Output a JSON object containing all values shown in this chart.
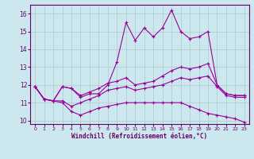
{
  "xlabel": "Windchill (Refroidissement éolien,°C)",
  "x": [
    0,
    1,
    2,
    3,
    4,
    5,
    6,
    7,
    8,
    9,
    10,
    11,
    12,
    13,
    14,
    15,
    16,
    17,
    18,
    19,
    20,
    21,
    22,
    23
  ],
  "line_max": [
    11.9,
    11.2,
    11.1,
    11.9,
    11.8,
    11.3,
    11.5,
    11.5,
    12.0,
    13.3,
    15.5,
    14.5,
    15.2,
    14.7,
    15.2,
    16.2,
    15.0,
    14.6,
    14.7,
    15.0,
    12.0,
    11.5,
    11.4,
    11.4
  ],
  "line_upper": [
    11.9,
    11.2,
    11.1,
    11.9,
    11.8,
    11.4,
    11.6,
    11.8,
    12.1,
    12.2,
    12.4,
    12.0,
    12.1,
    12.2,
    12.5,
    12.8,
    13.0,
    12.9,
    13.0,
    13.2,
    12.0,
    11.5,
    11.4,
    11.4
  ],
  "line_lower": [
    11.9,
    11.2,
    11.1,
    11.1,
    10.8,
    11.0,
    11.2,
    11.4,
    11.7,
    11.8,
    11.9,
    11.7,
    11.8,
    11.9,
    12.0,
    12.2,
    12.4,
    12.3,
    12.4,
    12.5,
    11.9,
    11.4,
    11.3,
    11.3
  ],
  "line_min": [
    11.9,
    11.2,
    11.1,
    11.0,
    10.5,
    10.3,
    10.5,
    10.7,
    10.8,
    10.9,
    11.0,
    11.0,
    11.0,
    11.0,
    11.0,
    11.0,
    11.0,
    10.8,
    10.6,
    10.4,
    10.3,
    10.2,
    10.1,
    9.9
  ],
  "bg_color": "#cce8ee",
  "line_color": "#990099",
  "grid_color": "#aacccc",
  "ylim": [
    9.8,
    16.5
  ],
  "yticks": [
    10,
    11,
    12,
    13,
    14,
    15,
    16
  ],
  "xticks": [
    0,
    1,
    2,
    3,
    4,
    5,
    6,
    7,
    8,
    9,
    10,
    11,
    12,
    13,
    14,
    15,
    16,
    17,
    18,
    19,
    20,
    21,
    22,
    23
  ]
}
